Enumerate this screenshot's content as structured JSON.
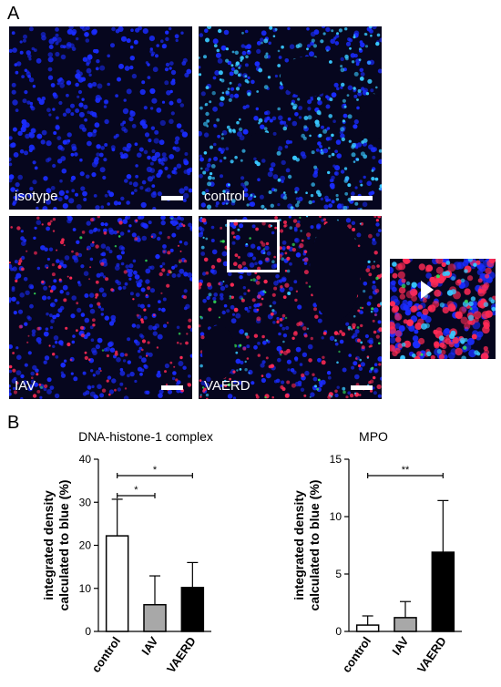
{
  "panel_a": {
    "letter": "A",
    "images": [
      {
        "label": "isotype",
        "palette": "blue"
      },
      {
        "label": "control",
        "palette": "cyan"
      },
      {
        "label": "IAV",
        "palette": "pink"
      },
      {
        "label": "VAERD",
        "palette": "red"
      },
      {
        "label": "",
        "palette": "inset"
      }
    ]
  },
  "panel_b": {
    "letter": "B"
  },
  "colors": {
    "nuclei": "#1a2cff",
    "cyan": "#38c8ff",
    "red": "#ff2a55",
    "green": "#33dd55",
    "iav_bar": "#a8a8a8",
    "vaerd_bar": "#000000"
  },
  "chart_data": [
    {
      "type": "bar",
      "title": "DNA-histone-1 complex",
      "ylabel": "integrated density calculated to blue (%)",
      "categories": [
        "control",
        "IAV",
        "VAERD"
      ],
      "values": [
        22.2,
        6.2,
        10.2
      ],
      "errors": [
        8.5,
        6.7,
        5.8
      ],
      "fills": [
        "#ffffff",
        "#a8a8a8",
        "#000000"
      ],
      "ylim": [
        0,
        40
      ],
      "yticks": [
        "0",
        "10",
        "20",
        "30",
        "40"
      ],
      "significance": [
        {
          "from": 0,
          "to": 2,
          "label": "*"
        },
        {
          "from": 0,
          "to": 1,
          "label": "*"
        }
      ]
    },
    {
      "type": "bar",
      "title": "MPO",
      "ylabel": "integrated density calculated to blue (%)",
      "categories": [
        "control",
        "IAV",
        "VAERD"
      ],
      "values": [
        0.55,
        1.2,
        6.9
      ],
      "errors": [
        0.8,
        1.4,
        4.5
      ],
      "fills": [
        "#ffffff",
        "#a8a8a8",
        "#000000"
      ],
      "ylim": [
        0,
        15
      ],
      "yticks": [
        "0",
        "5",
        "10",
        "15"
      ],
      "significance": [
        {
          "from": 0,
          "to": 2,
          "label": "**"
        }
      ]
    }
  ]
}
